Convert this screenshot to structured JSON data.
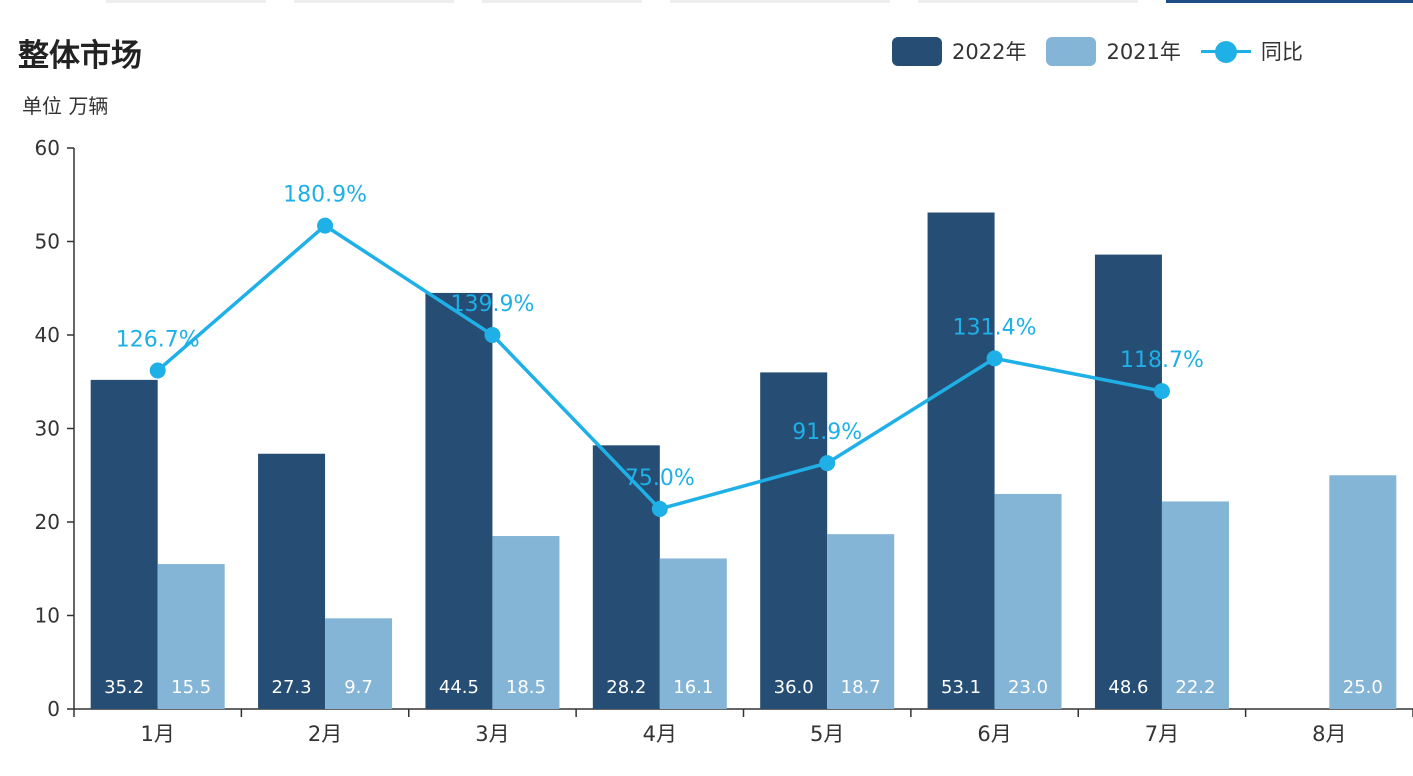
{
  "title": "整体市场",
  "unit_label": "单位 万辆",
  "colors": {
    "series_2022": "#264d73",
    "series_2021": "#85b5d6",
    "yoy_line": "#1eb0e6",
    "axis": "#333333",
    "tab_active": "#1d4f86",
    "tab_inactive": "#eeeeee"
  },
  "legend": [
    {
      "label": "2022年",
      "kind": "bar",
      "series": "2022"
    },
    {
      "label": "2021年",
      "kind": "bar",
      "series": "2021"
    },
    {
      "label": "同比",
      "kind": "line",
      "series": "yoy"
    }
  ],
  "chart_data": {
    "type": "bar",
    "title": "整体市场",
    "ylabel": "单位 万辆",
    "ylim": [
      0,
      60
    ],
    "yticks": [
      0,
      10,
      20,
      30,
      40,
      50,
      60
    ],
    "categories": [
      "1月",
      "2月",
      "3月",
      "4月",
      "5月",
      "6月",
      "7月",
      "8月"
    ],
    "series": [
      {
        "name": "2022年",
        "type": "bar",
        "values": [
          35.2,
          27.3,
          44.5,
          28.2,
          36.0,
          53.1,
          48.6,
          null
        ],
        "labels": [
          "35.2",
          "27.3",
          "44.5",
          "28.2",
          "36.0",
          "53.1",
          "48.6",
          null
        ]
      },
      {
        "name": "2021年",
        "type": "bar",
        "values": [
          15.5,
          9.7,
          18.5,
          16.1,
          18.7,
          23.0,
          22.2,
          25.0
        ],
        "labels": [
          "15.5",
          "9.7",
          "18.5",
          "16.1",
          "18.7",
          "23.0",
          "22.2",
          "25.0"
        ]
      },
      {
        "name": "同比",
        "type": "line",
        "axis_values": [
          36.2,
          51.7,
          40.0,
          21.4,
          26.3,
          37.5,
          34.0,
          null
        ],
        "labels": [
          "126.7%",
          "180.9%",
          "139.9%",
          "75.0%",
          "91.9%",
          "131.4%",
          "118.7%",
          null
        ]
      }
    ]
  }
}
